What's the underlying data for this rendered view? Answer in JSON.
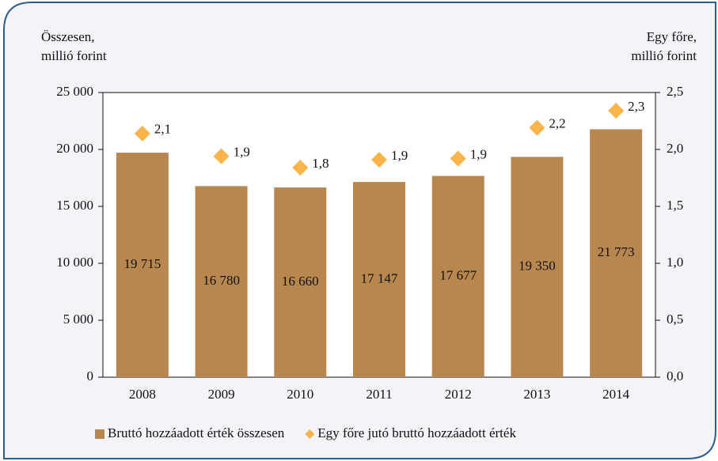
{
  "chart_data": {
    "type": "bar",
    "ylabel_lines": [
      "Összesen,",
      "millió forint"
    ],
    "y2label_lines": [
      "Egy főre,",
      "millió forint"
    ],
    "categories": [
      "2008",
      "2009",
      "2010",
      "2011",
      "2012",
      "2013",
      "2014"
    ],
    "series": [
      {
        "name": "Bruttó hozzáadott érték összesen",
        "type": "bar",
        "color": "#b8874f",
        "values": [
          19715,
          16780,
          16660,
          17147,
          17677,
          19350,
          21773
        ],
        "value_labels": [
          "19 715",
          "16 780",
          "16 660",
          "17 147",
          "17 677",
          "19 350",
          "21 773"
        ]
      },
      {
        "name": "Egy főre jutó bruttó hozzáadott érték",
        "type": "scatter",
        "axis": "y2",
        "color": "#f9b54a",
        "values": [
          2.14,
          1.94,
          1.84,
          1.91,
          1.92,
          2.19,
          2.34
        ],
        "value_labels": [
          "2,1",
          "1,9",
          "1,8",
          "1,9",
          "1,9",
          "2,2",
          "2,3"
        ]
      }
    ],
    "ylim": [
      0,
      25000
    ],
    "yticks": [
      0,
      {
        "value": 5000,
        "label": "5 000"
      },
      {
        "value": 10000,
        "label": "10 000"
      },
      {
        "value": 15000,
        "label": "15 000"
      },
      {
        "value": 20000,
        "label": "20 000"
      },
      {
        "value": 25000,
        "label": "25 000"
      }
    ],
    "y2lim": [
      0,
      2.5
    ],
    "y2ticks": [
      {
        "value": 0,
        "label": "0,0"
      },
      {
        "value": 0.5,
        "label": "0,5"
      },
      {
        "value": 1,
        "label": "1,0"
      },
      {
        "value": 1.5,
        "label": "1,5"
      },
      {
        "value": 2,
        "label": "2,0"
      },
      {
        "value": 2.5,
        "label": "2,5"
      }
    ],
    "grid": false,
    "legend": "bottom"
  }
}
